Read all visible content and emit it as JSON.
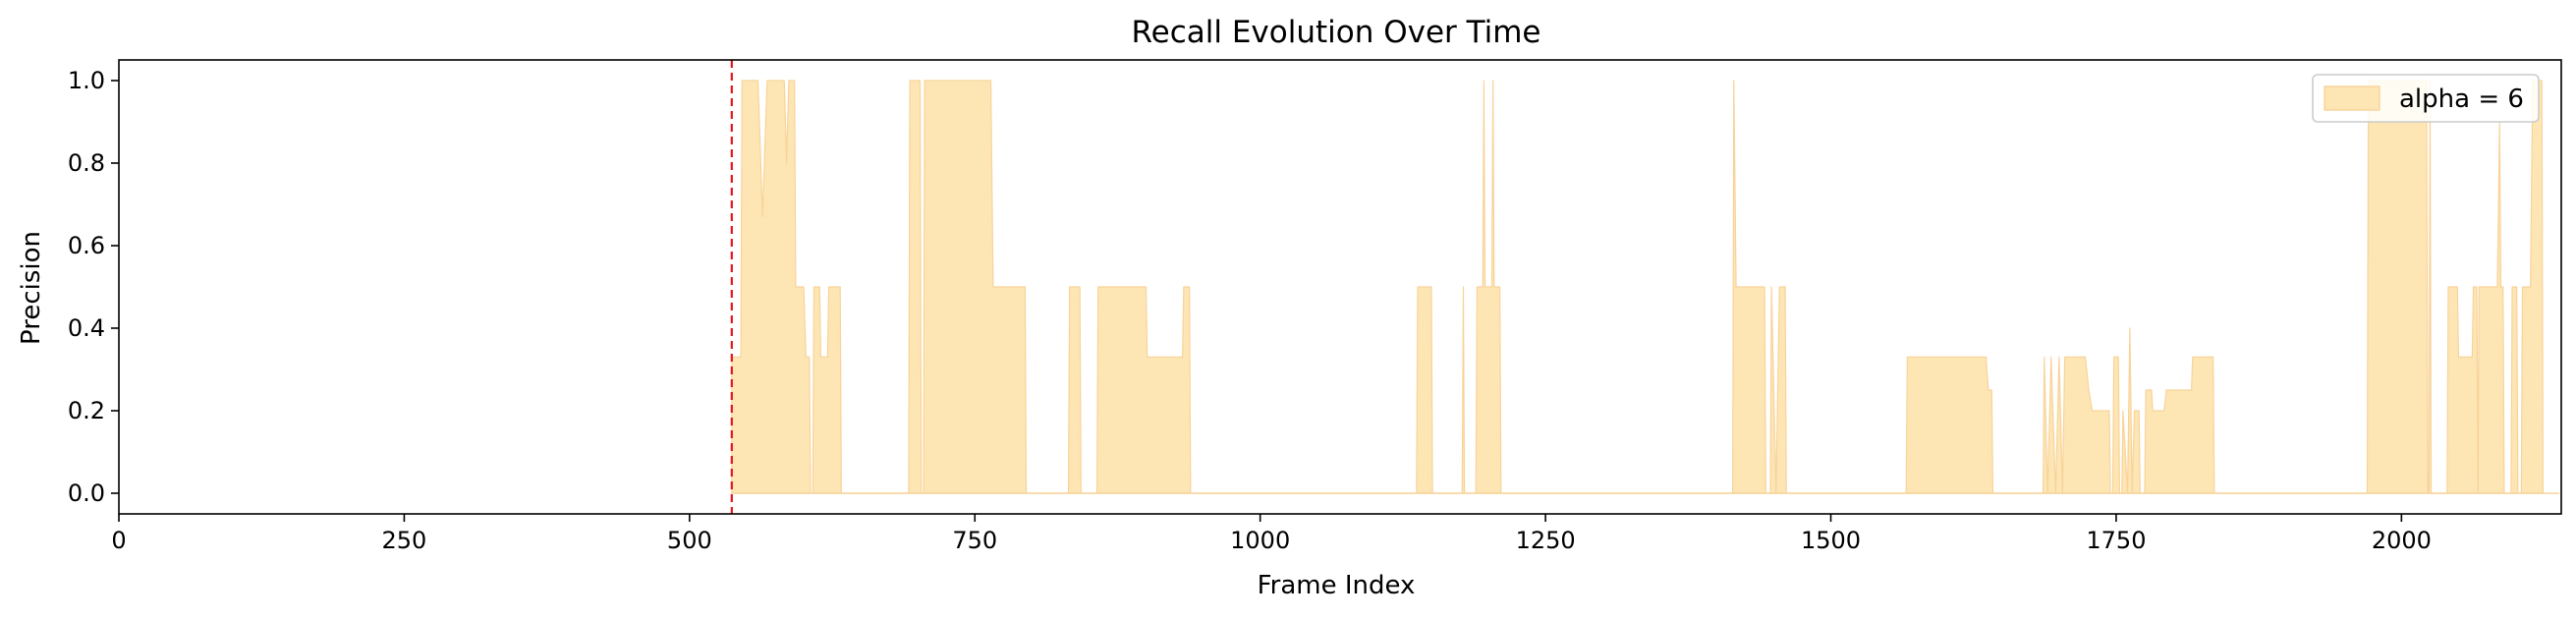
{
  "chart_data": {
    "type": "area",
    "title": "Recall Evolution Over Time",
    "xlabel": "Frame Index",
    "ylabel": "Precision",
    "xlim": [
      0,
      2140
    ],
    "ylim": [
      -0.05,
      1.05
    ],
    "xticks": [
      0,
      250,
      500,
      750,
      1000,
      1250,
      1500,
      1750,
      2000
    ],
    "yticks": [
      0.0,
      0.2,
      0.4,
      0.6,
      0.8,
      1.0
    ],
    "xtick_labels": [
      "0",
      "250",
      "500",
      "750",
      "1000",
      "1250",
      "1500",
      "1750",
      "2000"
    ],
    "ytick_labels": [
      "0.0",
      "0.2",
      "0.4",
      "0.6",
      "0.8",
      "1.0"
    ],
    "grid": false,
    "legend": {
      "placement": "top-right",
      "entries": [
        "alpha = 6"
      ]
    },
    "vline": {
      "x": 537,
      "color": "#e8161b",
      "style": "dashed"
    },
    "series": [
      {
        "name": "alpha = 6",
        "color": "#fde6b4",
        "edge_color": "#f8d39a",
        "points": [
          [
            537,
            0.33
          ],
          [
            545,
            0.33
          ],
          [
            546,
            1.0
          ],
          [
            560,
            1.0
          ],
          [
            564,
            0.67
          ],
          [
            568,
            1.0
          ],
          [
            583,
            1.0
          ],
          [
            585,
            0.8
          ],
          [
            587,
            1.0
          ],
          [
            592,
            1.0
          ],
          [
            593,
            0.5
          ],
          [
            600,
            0.5
          ],
          [
            602,
            0.33
          ],
          [
            605,
            0.33
          ],
          [
            606,
            0.0
          ],
          [
            608,
            0.0
          ],
          [
            609,
            0.5
          ],
          [
            614,
            0.5
          ],
          [
            615,
            0.33
          ],
          [
            621,
            0.33
          ],
          [
            622,
            0.5
          ],
          [
            632,
            0.5
          ],
          [
            633,
            0.0
          ],
          [
            692,
            0.0
          ],
          [
            693,
            1.0
          ],
          [
            702,
            1.0
          ],
          [
            703,
            0.0
          ],
          [
            705,
            0.0
          ],
          [
            706,
            1.0
          ],
          [
            764,
            1.0
          ],
          [
            766,
            0.5
          ],
          [
            794,
            0.5
          ],
          [
            795,
            0.0
          ],
          [
            832,
            0.0
          ],
          [
            833,
            0.5
          ],
          [
            842,
            0.5
          ],
          [
            843,
            0.0
          ],
          [
            857,
            0.0
          ],
          [
            858,
            0.5
          ],
          [
            900,
            0.5
          ],
          [
            901,
            0.33
          ],
          [
            932,
            0.33
          ],
          [
            933,
            0.5
          ],
          [
            938,
            0.5
          ],
          [
            939,
            0.0
          ],
          [
            1137,
            0.0
          ],
          [
            1138,
            0.5
          ],
          [
            1150,
            0.5
          ],
          [
            1151,
            0.0
          ],
          [
            1177,
            0.0
          ],
          [
            1178,
            0.5
          ],
          [
            1179,
            0.0
          ],
          [
            1189,
            0.0
          ],
          [
            1190,
            0.5
          ],
          [
            1195,
            0.5
          ],
          [
            1196,
            1.0
          ],
          [
            1197,
            0.5
          ],
          [
            1203,
            0.5
          ],
          [
            1204,
            1.0
          ],
          [
            1205,
            0.5
          ],
          [
            1210,
            0.5
          ],
          [
            1211,
            0.0
          ],
          [
            1414,
            0.0
          ],
          [
            1415,
            1.0
          ],
          [
            1417,
            0.5
          ],
          [
            1442,
            0.5
          ],
          [
            1443,
            0.0
          ],
          [
            1447,
            0.0
          ],
          [
            1448,
            0.5
          ],
          [
            1452,
            0.0
          ],
          [
            1455,
            0.5
          ],
          [
            1460,
            0.5
          ],
          [
            1461,
            0.0
          ],
          [
            1566,
            0.0
          ],
          [
            1567,
            0.33
          ],
          [
            1636,
            0.33
          ],
          [
            1638,
            0.25
          ],
          [
            1641,
            0.25
          ],
          [
            1642,
            0.0
          ],
          [
            1686,
            0.0
          ],
          [
            1687,
            0.33
          ],
          [
            1690,
            0.0
          ],
          [
            1693,
            0.33
          ],
          [
            1697,
            0.0
          ],
          [
            1700,
            0.33
          ],
          [
            1703,
            0.0
          ],
          [
            1705,
            0.33
          ],
          [
            1723,
            0.33
          ],
          [
            1726,
            0.25
          ],
          [
            1729,
            0.2
          ],
          [
            1744,
            0.2
          ],
          [
            1745,
            0.0
          ],
          [
            1747,
            0.0
          ],
          [
            1748,
            0.33
          ],
          [
            1752,
            0.33
          ],
          [
            1753,
            0.0
          ],
          [
            1755,
            0.0
          ],
          [
            1756,
            0.2
          ],
          [
            1760,
            0.0
          ],
          [
            1762,
            0.4
          ],
          [
            1764,
            0.0
          ],
          [
            1766,
            0.2
          ],
          [
            1770,
            0.2
          ],
          [
            1771,
            0.0
          ],
          [
            1775,
            0.0
          ],
          [
            1776,
            0.25
          ],
          [
            1781,
            0.25
          ],
          [
            1782,
            0.2
          ],
          [
            1792,
            0.2
          ],
          [
            1794,
            0.25
          ],
          [
            1816,
            0.25
          ],
          [
            1817,
            0.33
          ],
          [
            1835,
            0.33
          ],
          [
            1836,
            0.0
          ],
          [
            1970,
            0.0
          ],
          [
            1971,
            1.0
          ],
          [
            2022,
            1.0
          ],
          [
            2023,
            0.0
          ],
          [
            2024,
            0.0
          ],
          [
            2025,
            1.0
          ],
          [
            2026,
            0.0
          ],
          [
            2040,
            0.0
          ],
          [
            2041,
            0.5
          ],
          [
            2049,
            0.5
          ],
          [
            2050,
            0.33
          ],
          [
            2062,
            0.33
          ],
          [
            2063,
            0.5
          ],
          [
            2066,
            0.5
          ],
          [
            2067,
            0.0
          ],
          [
            2068,
            0.5
          ],
          [
            2084,
            0.5
          ],
          [
            2086,
            0.9
          ],
          [
            2087,
            0.5
          ],
          [
            2089,
            0.5
          ],
          [
            2090,
            0.0
          ],
          [
            2096,
            0.0
          ],
          [
            2097,
            0.5
          ],
          [
            2101,
            0.5
          ],
          [
            2102,
            0.0
          ],
          [
            2105,
            0.0
          ],
          [
            2106,
            0.5
          ],
          [
            2113,
            0.5
          ],
          [
            2115,
            1.0
          ],
          [
            2123,
            1.0
          ],
          [
            2124,
            0.0
          ]
        ]
      }
    ]
  }
}
